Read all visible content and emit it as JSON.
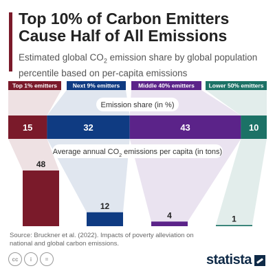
{
  "header": {
    "title": "Top 10% of Carbon Emitters Cause Half of All Emissions",
    "subtitle_pre": "Estimated global CO",
    "subtitle_sub": "2",
    "subtitle_post": " emission share by global population percentile based on per-capita emissions"
  },
  "footer": {
    "source": "Source: Bruckner et al. (2022). Impacts of poverty alleviation on national and global carbon emissions.",
    "cc_icons": [
      "cc",
      "i",
      "="
    ],
    "logo": "statista"
  },
  "colors": {
    "top1": "#7a1a2a",
    "next9": "#0f3b82",
    "middle40": "#5b2389",
    "lower50": "#1c7266"
  },
  "chart_data": {
    "type": "bar",
    "categories": [
      "Top 1% emitters",
      "Next 9% emitters",
      "Middle 40% emitters",
      "Lower 50% emitters"
    ],
    "emission_share": {
      "label": "Emission share (in %)",
      "values": [
        15,
        32,
        43,
        10
      ]
    },
    "per_capita": {
      "label_pre": "Average annual CO",
      "label_sub": "2",
      "label_post": " emissions per capita (in tons)",
      "values": [
        48,
        12,
        4,
        1
      ]
    }
  }
}
